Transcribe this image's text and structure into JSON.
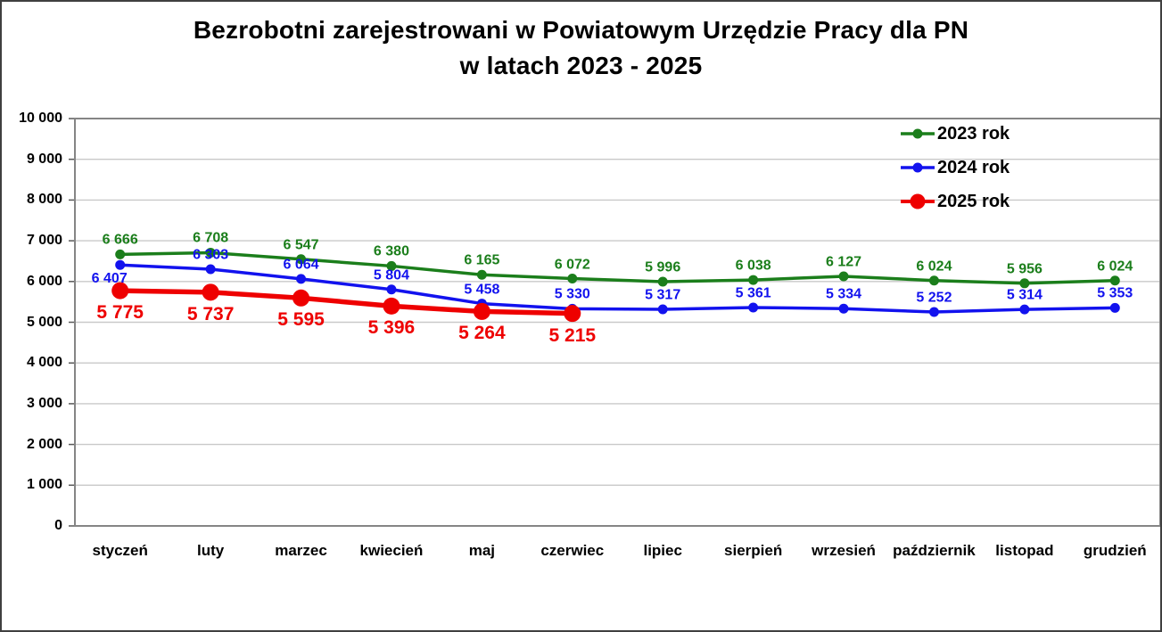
{
  "title": {
    "line1": "Bezrobotni zarejestrowani w Powiatowym Urzędzie Pracy dla PN",
    "line2": "w latach 2023 - 2025"
  },
  "colors": {
    "background": "#ffffff",
    "grid": "#c9c9c9",
    "plot_border": "#858585",
    "tick": "#595959",
    "axis_text": "#000000",
    "series_2023": "#1b7e1b",
    "series_2024": "#1212ee",
    "series_2025": "#ee0000"
  },
  "chart_data": {
    "type": "line",
    "title": "Bezrobotni zarejestrowani w Powiatowym Urzędzie Pracy dla PN w latach 2023 - 2025",
    "xlabel": "",
    "ylabel": "",
    "categories": [
      "styczeń",
      "luty",
      "marzec",
      "kwiecień",
      "maj",
      "czerwiec",
      "lipiec",
      "sierpień",
      "wrzesień",
      "październik",
      "listopad",
      "grudzień"
    ],
    "ylim": [
      0,
      10000
    ],
    "ytick_step": 1000,
    "grid": true,
    "legend_position": "inside-top-right",
    "number_format": "space-thousands",
    "series": [
      {
        "name": "2023 rok",
        "color": "#1b7e1b",
        "values": [
          6666,
          6708,
          6547,
          6380,
          6165,
          6072,
          5996,
          6038,
          6127,
          6024,
          5956,
          6024
        ],
        "line_width": 3.5,
        "marker_radius": 5.5,
        "label_font": 16,
        "label_position": "above"
      },
      {
        "name": "2024 rok",
        "color": "#1212ee",
        "values": [
          6407,
          6303,
          6064,
          5804,
          5458,
          5330,
          5317,
          5361,
          5334,
          5252,
          5314,
          5353
        ],
        "line_width": 3.5,
        "marker_radius": 5.5,
        "label_font": 16,
        "label_position": "above",
        "label_overrides": {
          "0": {
            "dx": -12,
            "dy": 7,
            "below": true
          }
        }
      },
      {
        "name": "2025 rok",
        "color": "#ee0000",
        "values": [
          5775,
          5737,
          5595,
          5396,
          5264,
          5215
        ],
        "line_width": 5.5,
        "marker_radius": 9.5,
        "label_font": 21,
        "label_position": "below"
      }
    ]
  }
}
